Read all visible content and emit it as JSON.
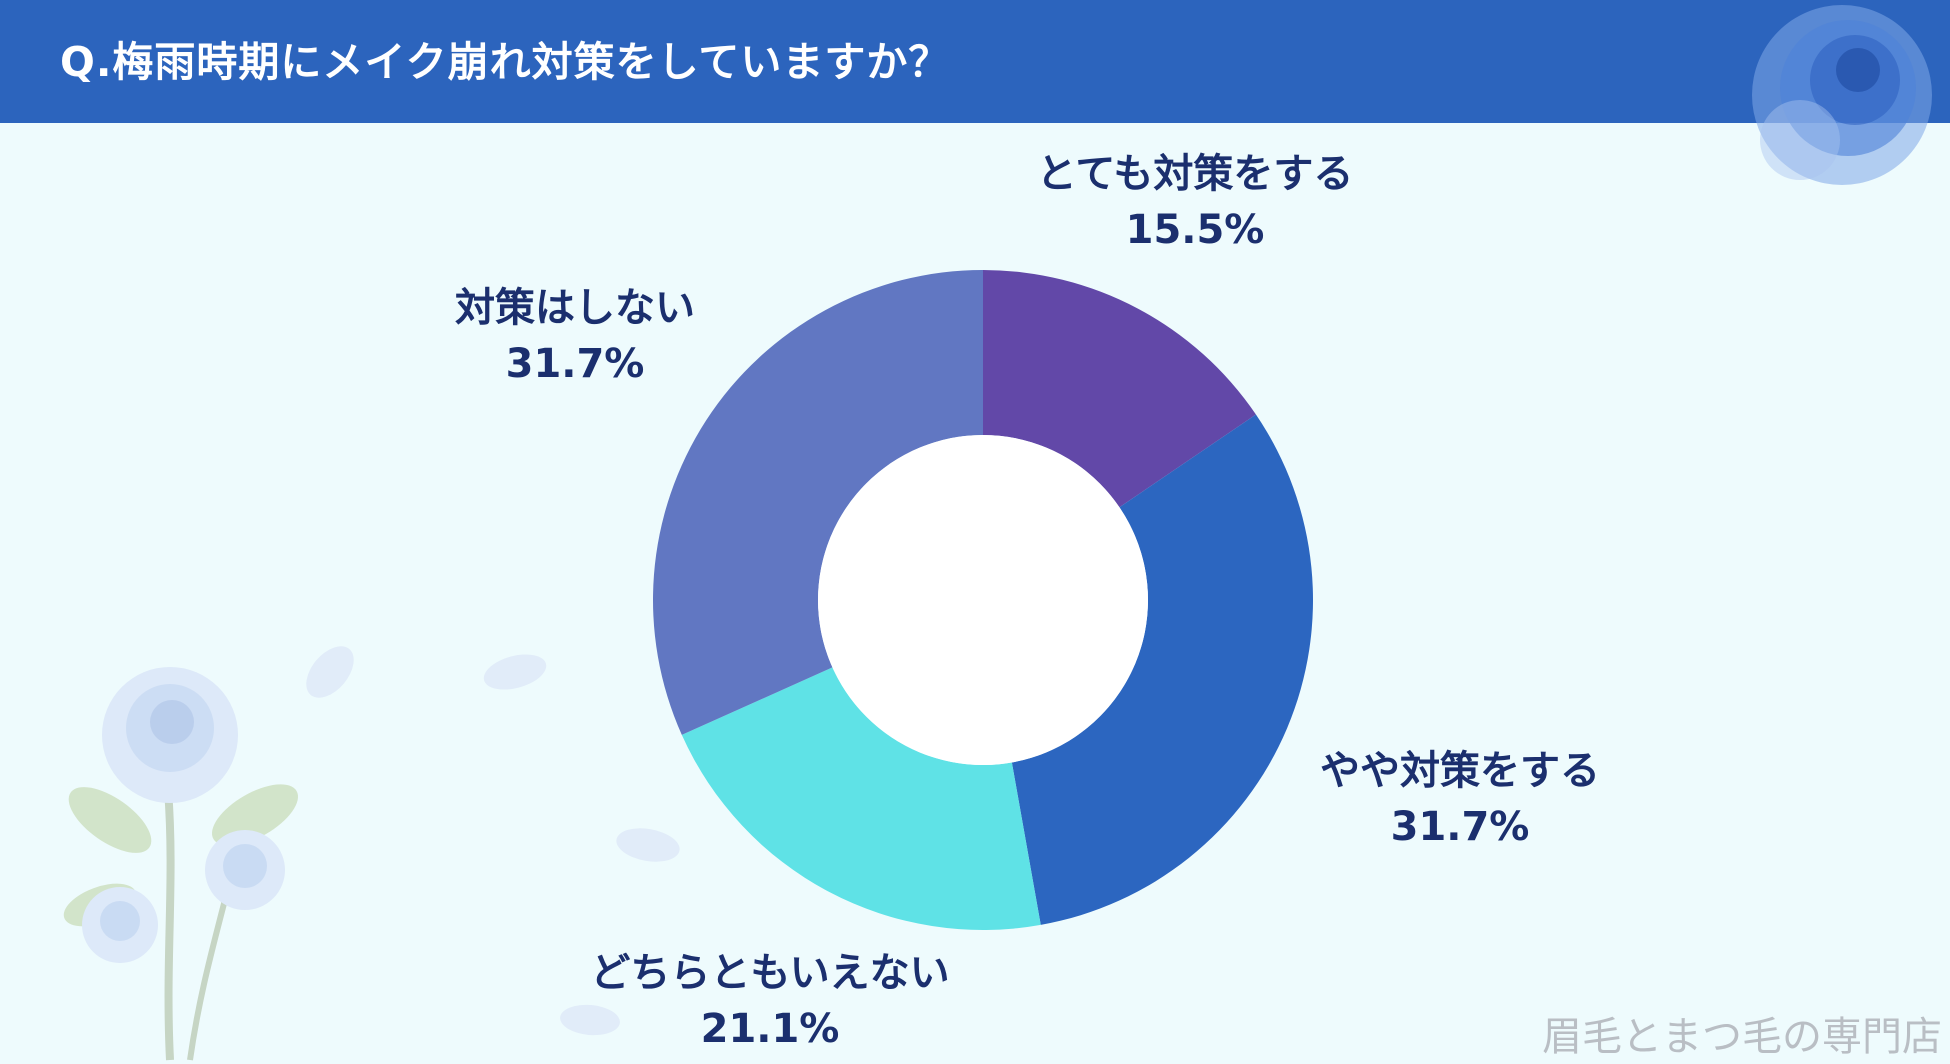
{
  "header": {
    "title": "Q.梅雨時期にメイク崩れ対策をしていますか？"
  },
  "colors": {
    "header_bg": "#2c64bd",
    "background": "#eefbfd",
    "label_text": "#1b2f6e"
  },
  "chart_data": {
    "type": "pie",
    "donut": true,
    "title": "",
    "slices": [
      {
        "label": "とても対策をする",
        "value": 15.5,
        "value_label": "15.5%",
        "color": "#6248a8"
      },
      {
        "label": "やや対策をする",
        "value": 31.7,
        "value_label": "31.7%",
        "color": "#2c66c0"
      },
      {
        "label": "どちらともいえない",
        "value": 21.1,
        "value_label": "21.1%",
        "color": "#5fe2e6"
      },
      {
        "label": "対策はしない",
        "value": 31.7,
        "value_label": "31.7%",
        "color": "#6177c2"
      }
    ]
  },
  "footer": {
    "watermark": "眉毛とまつ毛の専門店"
  }
}
